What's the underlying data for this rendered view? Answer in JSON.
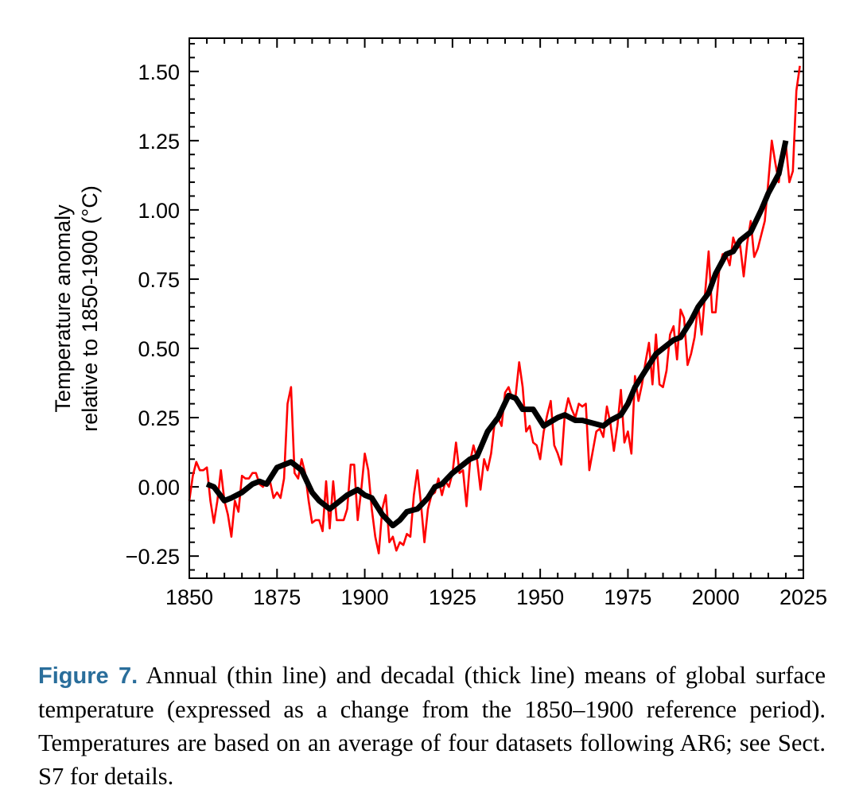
{
  "chart_data": {
    "type": "line",
    "title": "",
    "xlabel": "",
    "ylabel_lines": [
      "Temperature anomaly",
      "relative to 1850-1900 (°C)"
    ],
    "xlim": [
      1850,
      2025
    ],
    "ylim": [
      -0.33,
      1.62
    ],
    "xticks": [
      1850,
      1875,
      1900,
      1925,
      1950,
      1975,
      2000,
      2025
    ],
    "xtick_labels": [
      "1850",
      "1875",
      "1900",
      "1925",
      "1950",
      "1975",
      "2000",
      "2025"
    ],
    "yticks": [
      -0.25,
      0,
      0.25,
      0.5,
      0.75,
      1.0,
      1.25,
      1.5
    ],
    "ytick_labels": [
      "−0.25",
      "0.00",
      "0.25",
      "0.50",
      "0.75",
      "1.00",
      "1.25",
      "1.50"
    ],
    "grid": false,
    "series": [
      {
        "name": "Annual (thin line)",
        "color": "#ff0000",
        "x_start": 1850,
        "values": [
          -0.05,
          0.04,
          0.09,
          0.06,
          0.06,
          0.07,
          -0.05,
          -0.13,
          -0.05,
          0.06,
          -0.05,
          -0.1,
          -0.18,
          -0.05,
          -0.09,
          0.04,
          0.03,
          0.03,
          0.05,
          0.05,
          0.01,
          0.0,
          0.02,
          0.02,
          -0.04,
          -0.02,
          -0.04,
          0.03,
          0.3,
          0.36,
          0.05,
          0.03,
          0.1,
          0.05,
          -0.05,
          -0.13,
          -0.12,
          -0.12,
          -0.16,
          0.02,
          -0.15,
          0.02,
          -0.12,
          -0.12,
          -0.12,
          -0.08,
          0.08,
          0.08,
          -0.12,
          -0.01,
          0.12,
          0.06,
          -0.08,
          -0.18,
          -0.24,
          -0.08,
          -0.03,
          -0.2,
          -0.18,
          -0.23,
          -0.2,
          -0.21,
          -0.17,
          -0.18,
          -0.03,
          0.06,
          -0.06,
          -0.2,
          -0.08,
          -0.03,
          -0.02,
          0.03,
          -0.03,
          0.02,
          0.0,
          0.05,
          0.16,
          0.05,
          0.06,
          -0.07,
          0.09,
          0.15,
          0.1,
          -0.01,
          0.1,
          0.06,
          0.12,
          0.23,
          0.25,
          0.22,
          0.34,
          0.36,
          0.32,
          0.33,
          0.45,
          0.36,
          0.2,
          0.22,
          0.16,
          0.15,
          0.1,
          0.2,
          0.26,
          0.31,
          0.15,
          0.12,
          0.08,
          0.26,
          0.32,
          0.28,
          0.25,
          0.3,
          0.29,
          0.3,
          0.06,
          0.13,
          0.2,
          0.21,
          0.18,
          0.29,
          0.23,
          0.13,
          0.22,
          0.35,
          0.16,
          0.2,
          0.12,
          0.4,
          0.31,
          0.37,
          0.45,
          0.52,
          0.37,
          0.55,
          0.37,
          0.36,
          0.42,
          0.55,
          0.58,
          0.46,
          0.64,
          0.61,
          0.44,
          0.48,
          0.54,
          0.66,
          0.55,
          0.7,
          0.85,
          0.63,
          0.63,
          0.78,
          0.84,
          0.84,
          0.8,
          0.9,
          0.86,
          0.87,
          0.76,
          0.88,
          0.96,
          0.83,
          0.86,
          0.91,
          0.96,
          1.1,
          1.25,
          1.17,
          1.1,
          1.22,
          1.24,
          1.1,
          1.14,
          1.43,
          1.52
        ]
      },
      {
        "name": "Decadal (thick line)",
        "color": "#000000",
        "x": [
          1855,
          1857,
          1860,
          1862,
          1865,
          1868,
          1870,
          1872,
          1875,
          1877,
          1879,
          1882,
          1885,
          1887,
          1890,
          1892,
          1895,
          1898,
          1900,
          1902,
          1905,
          1908,
          1910,
          1912,
          1915,
          1918,
          1920,
          1922,
          1925,
          1928,
          1930,
          1932,
          1935,
          1938,
          1941,
          1943,
          1945,
          1948,
          1951,
          1955,
          1957,
          1960,
          1962,
          1965,
          1968,
          1970,
          1973,
          1975,
          1977,
          1980,
          1983,
          1985,
          1988,
          1990,
          1993,
          1995,
          1998,
          2000,
          2003,
          2005,
          2007,
          2010,
          2013,
          2015,
          2018,
          2020
        ],
        "values": [
          0.01,
          0.0,
          -0.05,
          -0.04,
          -0.02,
          0.01,
          0.02,
          0.01,
          0.07,
          0.08,
          0.09,
          0.06,
          -0.02,
          -0.05,
          -0.08,
          -0.06,
          -0.03,
          -0.01,
          -0.03,
          -0.04,
          -0.1,
          -0.14,
          -0.12,
          -0.09,
          -0.08,
          -0.04,
          0.0,
          0.01,
          0.05,
          0.08,
          0.1,
          0.11,
          0.2,
          0.25,
          0.33,
          0.32,
          0.28,
          0.28,
          0.22,
          0.25,
          0.26,
          0.24,
          0.24,
          0.23,
          0.22,
          0.24,
          0.26,
          0.3,
          0.36,
          0.42,
          0.48,
          0.5,
          0.53,
          0.54,
          0.6,
          0.65,
          0.7,
          0.77,
          0.84,
          0.85,
          0.89,
          0.92,
          1.0,
          1.06,
          1.13,
          1.25
        ]
      }
    ]
  },
  "caption": {
    "label": "Figure 7.",
    "text": " Annual (thin line) and decadal (thick line) means of global surface temperature (expressed as a change from the 1850–1900 reference period). Temperatures are based on an average of four datasets following AR6; see Sect. S7 for details."
  }
}
